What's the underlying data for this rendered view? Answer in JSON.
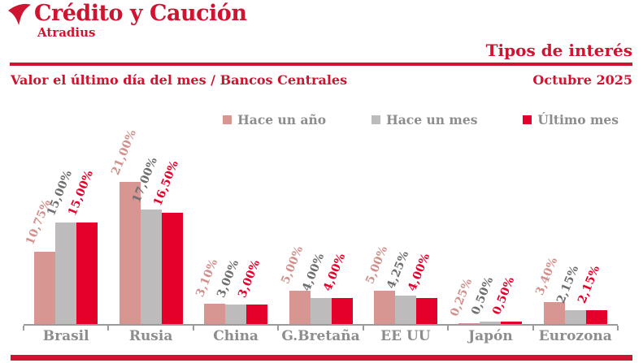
{
  "header": {
    "logo_title": "Crédito y Caución",
    "logo_subtitle": "Atradius",
    "page_title": "Tipos de interés",
    "subtitle_left": "Valor el último día del mes / Bancos Centrales",
    "subtitle_right": "Octubre 2025"
  },
  "colors": {
    "brand_red": "#ce1430",
    "bar_pink": "#d89692",
    "bar_gray": "#bdbbbc",
    "bar_red": "#e4002b",
    "label_pink": "#d3908c",
    "label_gray": "#6e6e70",
    "label_red": "#e4002b",
    "axis_gray": "#9b9b9b",
    "category_text": "#8d8d8d",
    "legend_text": "#8d8d8d"
  },
  "chart_data": {
    "type": "bar",
    "title": "Tipos de interés",
    "subtitle": "Valor el último día del mes / Bancos Centrales",
    "period": "Octubre 2025",
    "categories": [
      "Brasil",
      "Rusia",
      "China",
      "G.Bretaña",
      "EE UU",
      "Japón",
      "Eurozona"
    ],
    "series": [
      {
        "name": "Hace un año",
        "values": [
          10.75,
          21.0,
          3.1,
          5.0,
          5.0,
          0.25,
          3.4
        ],
        "labels": [
          "10,75%",
          "21,00%",
          "3,10%",
          "5,00%",
          "5,00%",
          "0,25%",
          "3,40%"
        ],
        "color": "#d89692",
        "label_color": "#d3908c"
      },
      {
        "name": "Hace un mes",
        "values": [
          15.0,
          17.0,
          3.0,
          4.0,
          4.25,
          0.5,
          2.15
        ],
        "labels": [
          "15,00%",
          "17,00%",
          "3,00%",
          "4,00%",
          "4,25%",
          "0,50%",
          "2,15%"
        ],
        "color": "#bdbbbc",
        "label_color": "#6e6e70"
      },
      {
        "name": "Último mes",
        "values": [
          15.0,
          16.5,
          3.0,
          4.0,
          4.0,
          0.5,
          2.15
        ],
        "labels": [
          "15,00%",
          "16,50%",
          "3,00%",
          "4,00%",
          "4,00%",
          "0,50%",
          "2,15%"
        ],
        "color": "#e4002b",
        "label_color": "#e4002b"
      }
    ],
    "ylim": [
      0,
      22
    ],
    "value_format": "percent-decimal-comma",
    "grid": false,
    "legend_position": "top",
    "bar_labels_rotated_degrees": 68
  }
}
